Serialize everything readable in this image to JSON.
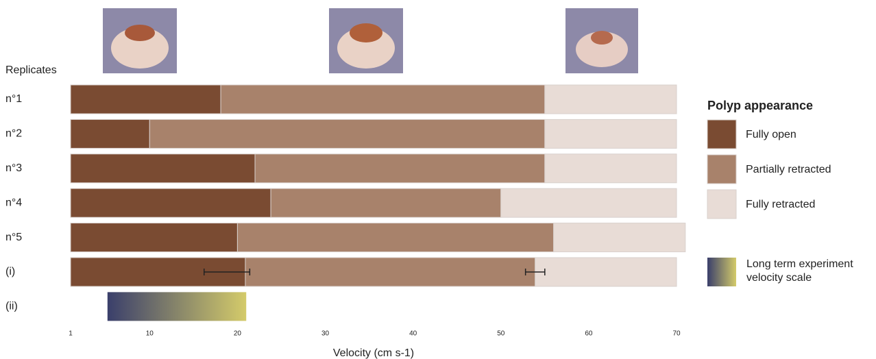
{
  "chart_data": {
    "type": "stacked-barh",
    "y_header": "Replicates",
    "xlabel": "Velocity (cm s-1)",
    "categories": [
      "n°1",
      "n°2",
      "n°3",
      "n°4",
      "n°5",
      "(i)"
    ],
    "series": [
      {
        "name": "Fully open",
        "color": "#7a4b32",
        "values": [
          17.1,
          9,
          21,
          22.8,
          19,
          19.9
        ]
      },
      {
        "name": "Partially retracted",
        "color": "#a8826b",
        "values": [
          36.9,
          45,
          33,
          26.2,
          36,
          33
        ]
      },
      {
        "name": "Fully retracted",
        "color": "#e8dcd6",
        "values": [
          15,
          15,
          15,
          20,
          15,
          16.1
        ]
      }
    ],
    "error_bars": [
      {
        "center": 18.8,
        "error": 2.6
      },
      {
        "center": 53.9,
        "error": 1.1
      }
    ],
    "gradient_row_label": "(ii)",
    "gradient_range": [
      5.2,
      21
    ],
    "gradient_colors": [
      "#3a3f6b",
      "#d4cb6a"
    ],
    "gradient_legend": "Long term experiment velocity scale",
    "legend_title": "Polyp appearance",
    "xlim": [
      1,
      70
    ],
    "xticks": [
      1,
      10,
      20,
      30,
      40,
      50,
      60,
      70
    ]
  }
}
